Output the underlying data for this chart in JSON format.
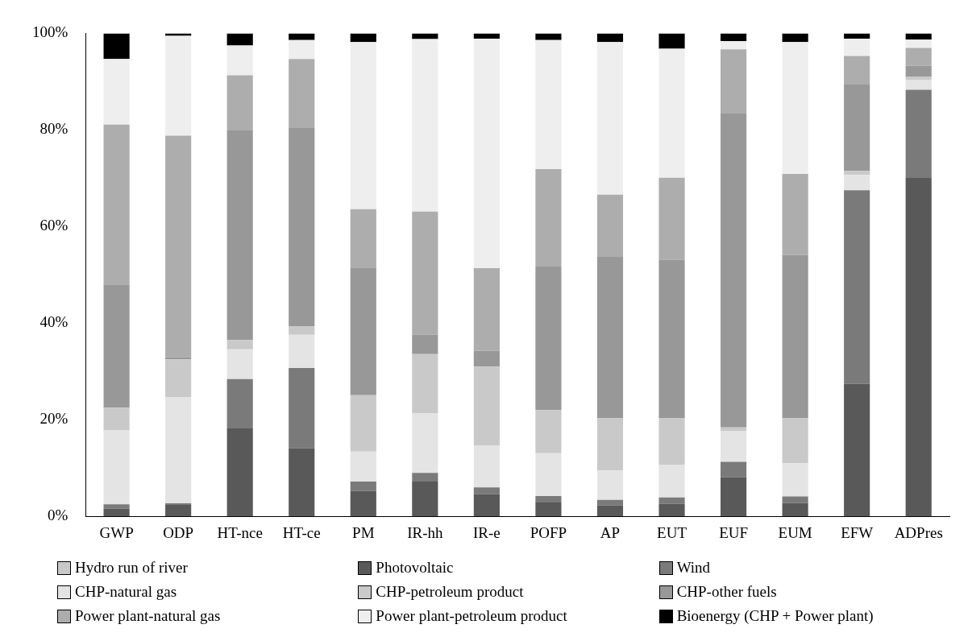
{
  "chart_data": {
    "type": "bar",
    "stacked": true,
    "categories": [
      "GWP",
      "ODP",
      "HT-nce",
      "HT-ce",
      "PM",
      "IR-hh",
      "IR-e",
      "POFP",
      "AP",
      "EUT",
      "EUF",
      "EUM",
      "EFW",
      "ADPres"
    ],
    "ylim": [
      0,
      100
    ],
    "yticks": [
      {
        "value": 0,
        "label": "0%"
      },
      {
        "value": 20,
        "label": "20%"
      },
      {
        "value": 40,
        "label": "40%"
      },
      {
        "value": 60,
        "label": "60%"
      },
      {
        "value": 80,
        "label": "80%"
      },
      {
        "value": 100,
        "label": "100%"
      }
    ],
    "grid": false,
    "legend": "bottom",
    "series": [
      {
        "name": "Hydro run of river",
        "color": "#c8c8c8",
        "values": [
          0,
          0,
          0,
          0,
          0,
          0,
          0,
          0,
          0,
          0,
          0,
          0,
          0,
          0
        ]
      },
      {
        "name": "Photovoltaic",
        "color": "#595959",
        "values": [
          1.6,
          2.5,
          18.2,
          14.1,
          5.3,
          7.2,
          4.6,
          3.0,
          2.3,
          2.6,
          8.1,
          2.8,
          27.4,
          70.2
        ]
      },
      {
        "name": "Wind",
        "color": "#7a7a7a",
        "values": [
          0.9,
          0.2,
          10.2,
          16.6,
          1.9,
          1.8,
          1.4,
          1.2,
          1.1,
          1.3,
          3.2,
          1.3,
          40.1,
          18.1
        ]
      },
      {
        "name": "CHP-natural gas",
        "color": "#e4e4e4",
        "values": [
          15.3,
          22.0,
          6.2,
          6.9,
          6.2,
          12.3,
          8.7,
          8.9,
          6.1,
          6.7,
          6.4,
          6.9,
          3.2,
          2.0
        ]
      },
      {
        "name": "CHP-petroleum product",
        "color": "#c9c9c9",
        "values": [
          4.7,
          7.8,
          1.9,
          1.8,
          11.7,
          12.3,
          16.3,
          8.9,
          10.8,
          9.7,
          0.7,
          9.3,
          0.8,
          0.7
        ]
      },
      {
        "name": "CHP-other fuels",
        "color": "#989898",
        "values": [
          25.4,
          0.4,
          43.4,
          41.0,
          26.3,
          4.0,
          3.3,
          29.7,
          33.4,
          32.8,
          65.1,
          33.8,
          17.9,
          2.3
        ]
      },
      {
        "name": "Power plant-natural gas",
        "color": "#adadad",
        "values": [
          33.2,
          45.9,
          11.4,
          14.3,
          12.2,
          25.5,
          17.1,
          20.2,
          12.9,
          17.0,
          13.2,
          16.8,
          5.9,
          3.7
        ]
      },
      {
        "name": "Power plant-petroleum product",
        "color": "#eeeeee",
        "values": [
          13.6,
          20.7,
          6.2,
          3.9,
          34.6,
          35.7,
          47.5,
          26.7,
          31.6,
          26.7,
          1.7,
          27.3,
          3.6,
          1.7
        ]
      },
      {
        "name": "Bioenergy (CHP + Power plant)",
        "color": "#000000",
        "values": [
          5.3,
          0.5,
          2.5,
          1.4,
          1.8,
          1.2,
          1.1,
          1.4,
          1.8,
          3.2,
          1.6,
          1.8,
          1.1,
          1.3
        ]
      }
    ]
  }
}
